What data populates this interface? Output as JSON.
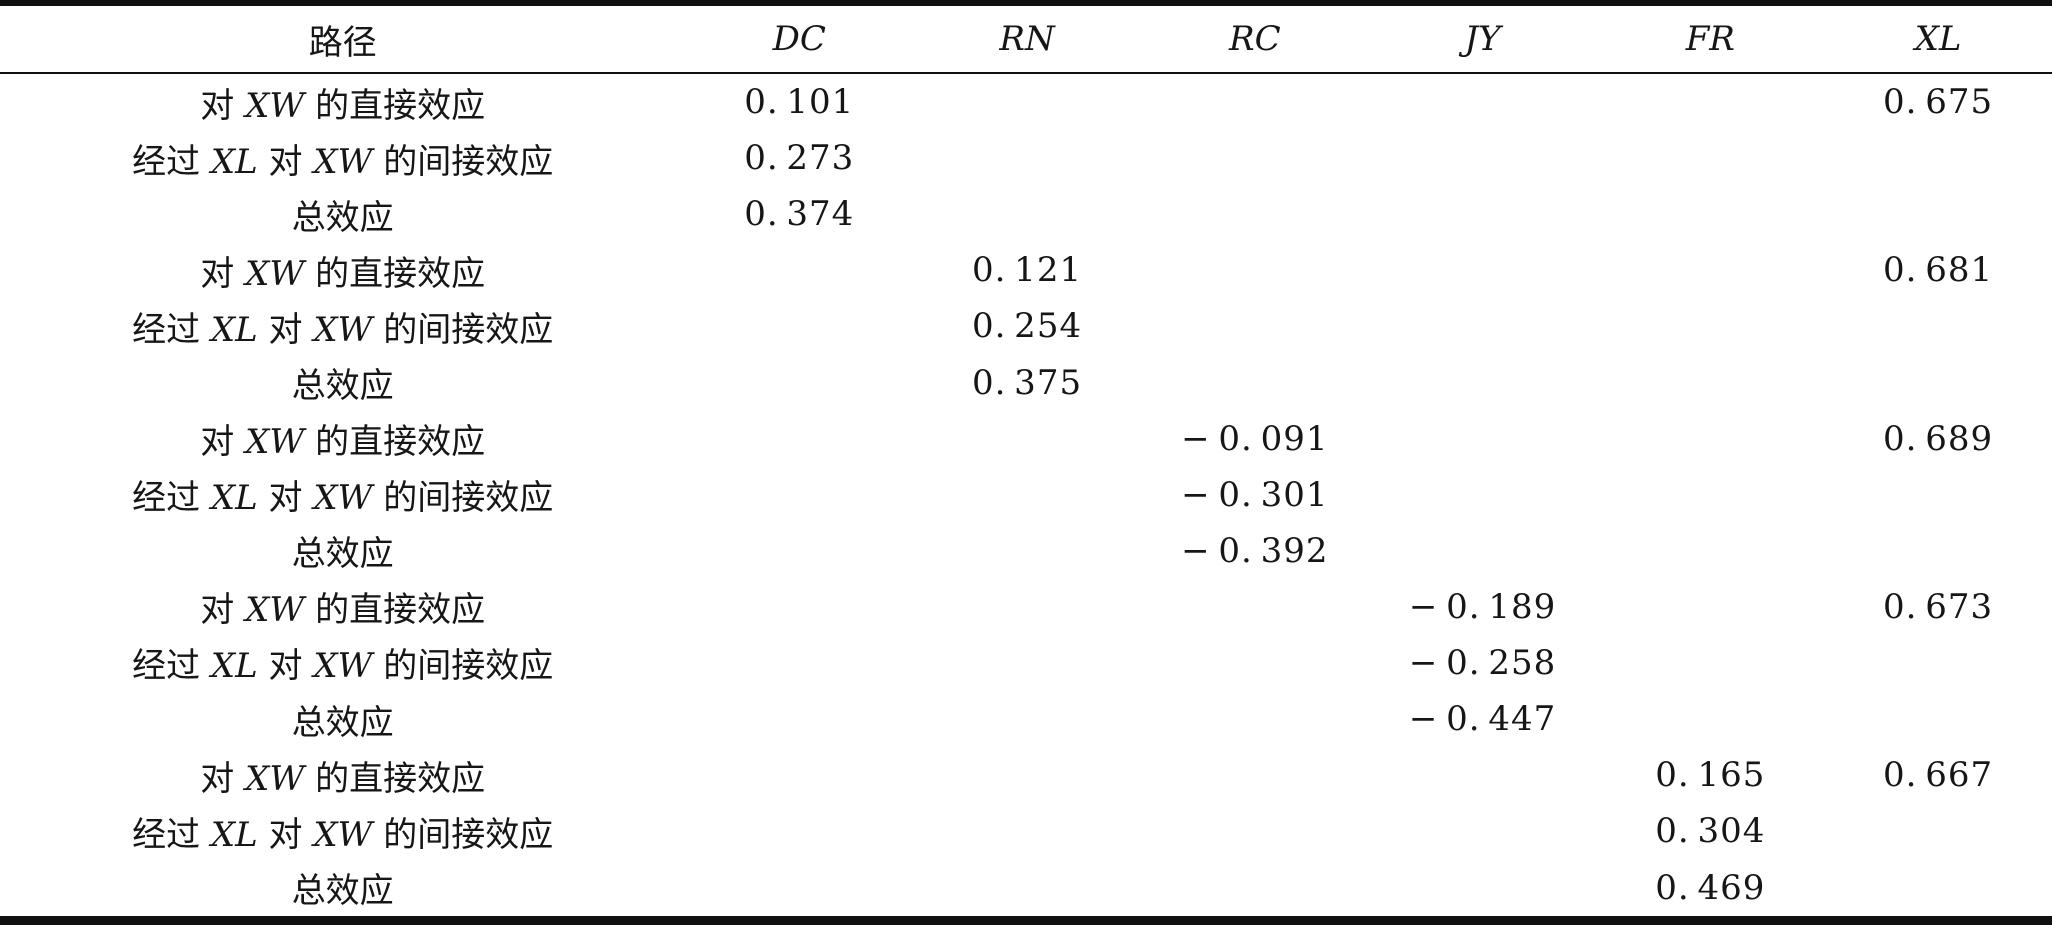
{
  "page": {
    "background": "#ffffff",
    "text_color": "#161616",
    "rule_color": "#101010"
  },
  "table": {
    "columns": [
      "路径",
      "DC",
      "RN",
      "RC",
      "JY",
      "FR",
      "XL"
    ],
    "rows": [
      {
        "label": "对 XW 的直接效应",
        "values": [
          "0.101",
          "",
          "",
          "",
          "",
          "0.675"
        ]
      },
      {
        "label": "经过 XL 对 XW 的间接效应",
        "values": [
          "0.273",
          "",
          "",
          "",
          "",
          ""
        ]
      },
      {
        "label": "总效应",
        "values": [
          "0.374",
          "",
          "",
          "",
          "",
          ""
        ]
      },
      {
        "label": "对 XW 的直接效应",
        "values": [
          "",
          "0.121",
          "",
          "",
          "",
          "0.681"
        ]
      },
      {
        "label": "经过 XL 对 XW 的间接效应",
        "values": [
          "",
          "0.254",
          "",
          "",
          "",
          ""
        ]
      },
      {
        "label": "总效应",
        "values": [
          "",
          "0.375",
          "",
          "",
          "",
          ""
        ]
      },
      {
        "label": "对 XW 的直接效应",
        "values": [
          "",
          "",
          "−0.091",
          "",
          "",
          "0.689"
        ]
      },
      {
        "label": "经过 XL 对 XW 的间接效应",
        "values": [
          "",
          "",
          "−0.301",
          "",
          "",
          ""
        ]
      },
      {
        "label": "总效应",
        "values": [
          "",
          "",
          "−0.392",
          "",
          "",
          ""
        ]
      },
      {
        "label": "对 XW 的直接效应",
        "values": [
          "",
          "",
          "",
          "−0.189",
          "",
          "0.673"
        ]
      },
      {
        "label": "经过 XL 对 XW 的间接效应",
        "values": [
          "",
          "",
          "",
          "−0.258",
          "",
          ""
        ]
      },
      {
        "label": "总效应",
        "values": [
          "",
          "",
          "",
          "−0.447",
          "",
          ""
        ]
      },
      {
        "label": "对 XW 的直接效应",
        "values": [
          "",
          "",
          "",
          "",
          "0.165",
          "0.667"
        ]
      },
      {
        "label": "经过 XL 对 XW 的间接效应",
        "values": [
          "",
          "",
          "",
          "",
          "0.304",
          ""
        ]
      },
      {
        "label": "总效应",
        "values": [
          "",
          "",
          "",
          "",
          "0.469",
          ""
        ]
      }
    ]
  }
}
